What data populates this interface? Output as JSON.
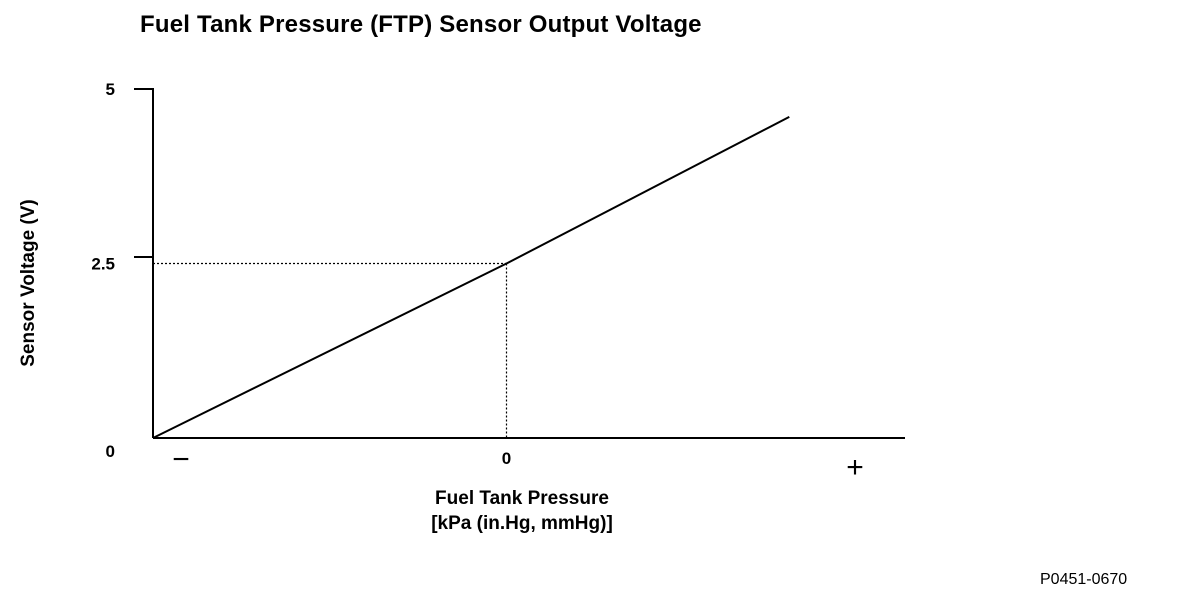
{
  "chart_data": {
    "type": "line",
    "title": "Fuel Tank Pressure (FTP) Sensor Output Voltage",
    "ylabel": "Sensor Voltage (V)",
    "xlabel_line1": "Fuel Tank Pressure",
    "xlabel_line2": "[kPa (in.Hg, mmHg)]",
    "y_ticks": [
      {
        "label": "5",
        "value": 5
      },
      {
        "label": "2.5",
        "value": 2.5
      },
      {
        "label": "0",
        "value": 0
      }
    ],
    "x_ticks": [
      {
        "label": "−",
        "value": -1
      },
      {
        "label": "0",
        "value": 0
      },
      {
        "label": "+",
        "value": 1
      }
    ],
    "ylim": [
      0,
      5
    ],
    "xlim": [
      -1,
      1
    ],
    "series": [
      {
        "x": [
          -1,
          0,
          0.8
        ],
        "y": [
          0,
          2.5,
          4.6
        ]
      }
    ],
    "reference_point": {
      "x": 0,
      "y": 2.5
    },
    "grid": false
  },
  "figure_code": "P0451-0670"
}
